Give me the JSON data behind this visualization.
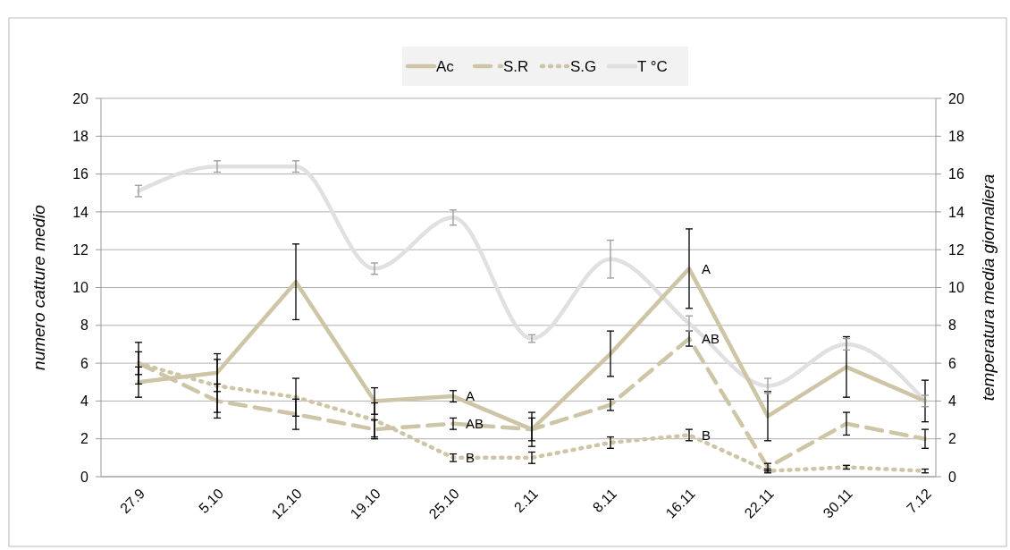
{
  "chart_data": {
    "type": "line",
    "categories": [
      "27.9",
      "5.10",
      "12.10",
      "19.10",
      "25.10",
      "2.11",
      "8.11",
      "16.11",
      "22.11",
      "30.11",
      "7.12"
    ],
    "ylabel": "numero catture medio",
    "y2label": "temperatura media giornaliera",
    "ylim": [
      0,
      20
    ],
    "yticks": [
      0,
      2,
      4,
      6,
      8,
      10,
      12,
      14,
      16,
      18,
      20
    ],
    "y2lim": [
      0,
      20
    ],
    "y2ticks": [
      0,
      2,
      4,
      6,
      8,
      10,
      12,
      14,
      16,
      18,
      20
    ],
    "grid": "y",
    "legend": "top",
    "series": [
      {
        "name": "Ac",
        "color": "#cdc5a5",
        "line_style": "solid",
        "values": [
          5.0,
          5.5,
          10.3,
          4.0,
          4.25,
          2.5,
          6.5,
          11.0,
          3.2,
          5.8,
          4.0
        ],
        "errors": [
          0.8,
          1.0,
          2.0,
          0.7,
          0.3,
          0.9,
          1.2,
          2.1,
          1.3,
          1.6,
          1.1
        ]
      },
      {
        "name": "S.R",
        "color": "#cdc5a5",
        "line_style": "dashed",
        "values": [
          6.0,
          4.0,
          3.3,
          2.5,
          2.8,
          2.5,
          3.8,
          7.3,
          0.5,
          2.8,
          2.0
        ],
        "errors": [
          1.1,
          0.9,
          0.8,
          0.5,
          0.3,
          0.6,
          0.3,
          0.4,
          0.2,
          0.6,
          0.5
        ]
      },
      {
        "name": "S.G",
        "color": "#cdc5a5",
        "line_style": "dotted",
        "values": [
          6.0,
          4.8,
          4.2,
          3.0,
          1.0,
          1.0,
          1.8,
          2.2,
          0.3,
          0.5,
          0.3
        ],
        "errors": [
          0.6,
          1.4,
          1.0,
          0.9,
          0.2,
          0.3,
          0.3,
          0.3,
          0.1,
          0.1,
          0.1
        ]
      },
      {
        "name": "T °C",
        "color": "#e0e0e0",
        "line_style": "solid",
        "axis": "y2",
        "values": [
          15.1,
          16.4,
          16.4,
          11.0,
          13.7,
          7.3,
          11.5,
          8.1,
          4.8,
          7.0,
          4.0
        ],
        "errors": [
          0.3,
          0.3,
          0.3,
          0.3,
          0.4,
          0.2,
          1.0,
          0.4,
          0.4,
          0.3,
          0.3
        ]
      }
    ],
    "annotations": [
      {
        "text": "A",
        "x": "25.10",
        "y": 4.25
      },
      {
        "text": "AB",
        "x": "25.10",
        "y": 2.8
      },
      {
        "text": "B",
        "x": "25.10",
        "y": 1.0
      },
      {
        "text": "A",
        "x": "16.11",
        "y": 11.0
      },
      {
        "text": "AB",
        "x": "16.11",
        "y": 7.3
      },
      {
        "text": "B",
        "x": "16.11",
        "y": 2.2
      }
    ]
  }
}
